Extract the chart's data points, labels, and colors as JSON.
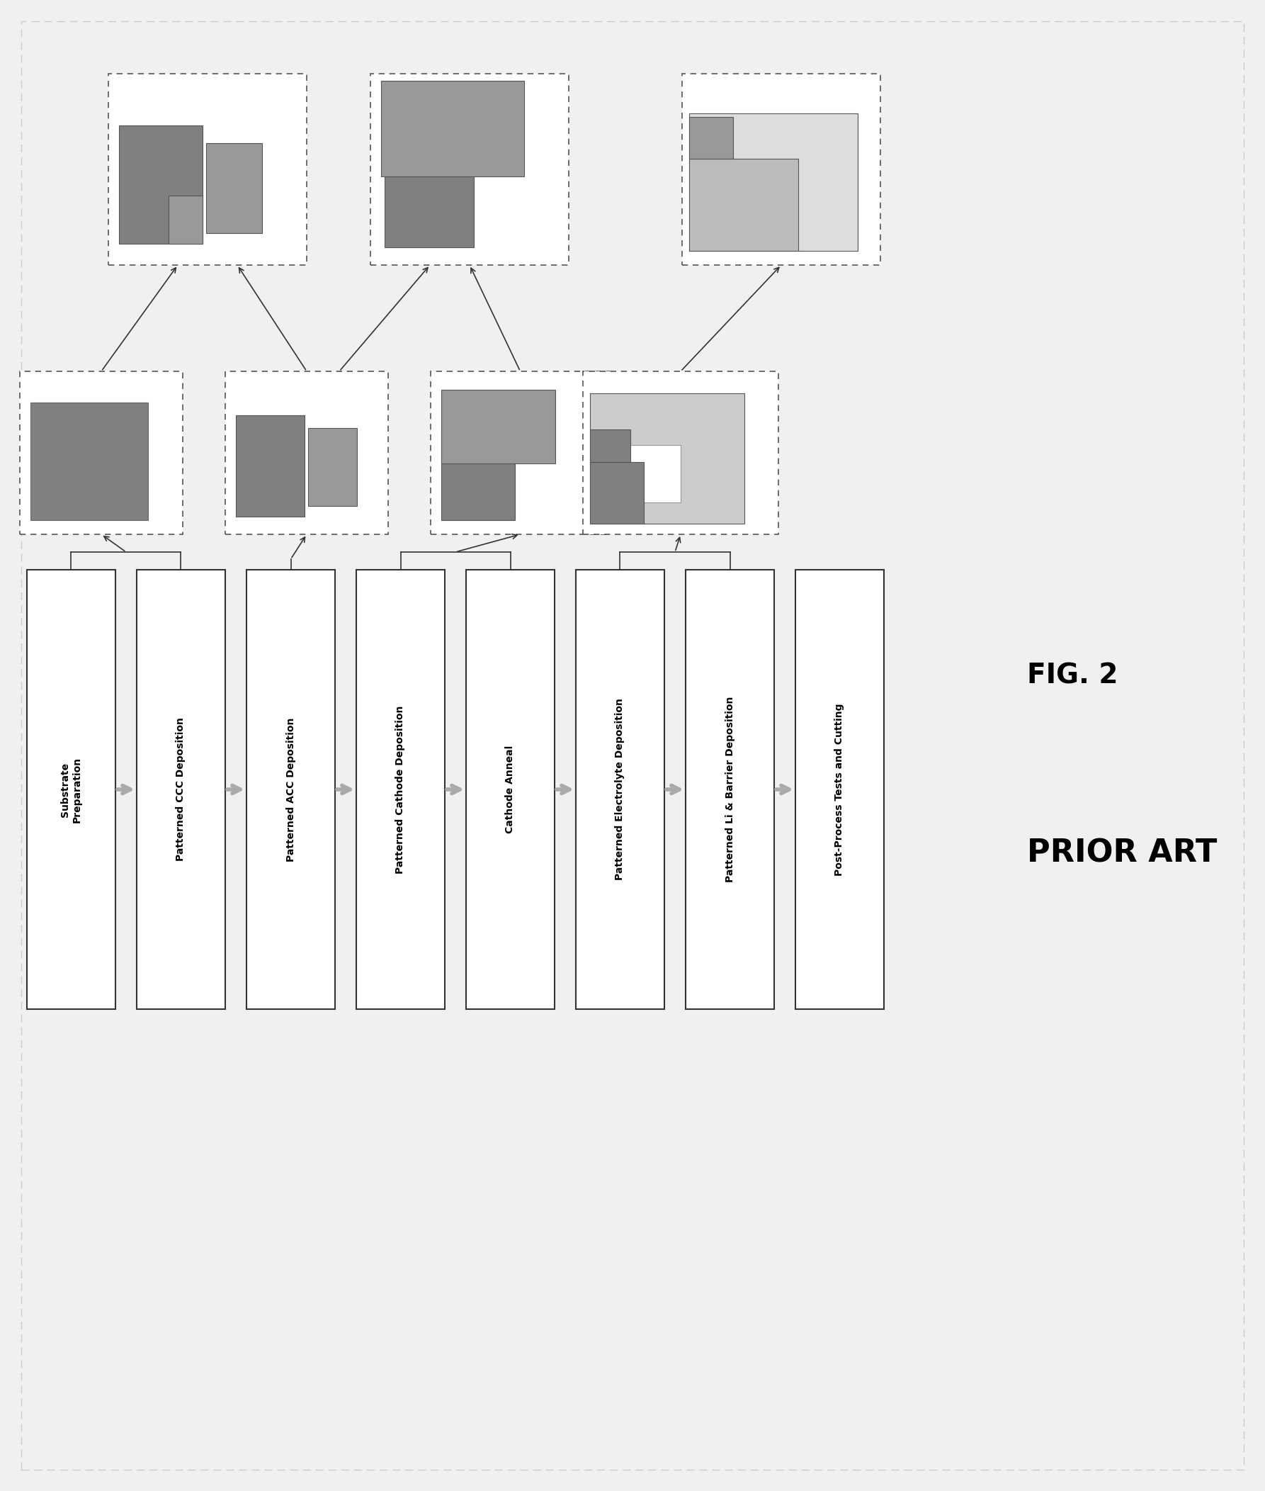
{
  "title": "FIG. 2",
  "subtitle": "PRIOR ART",
  "bg_color": "#f0f0f0",
  "step_labels": [
    "Substrate\nPreparation",
    "Patterned CCC Deposition",
    "Patterned ACC Deposition",
    "Patterned Cathode Deposition",
    "Cathode Anneal",
    "Patterned Electrolyte Deposition",
    "Patterned Li & Barrier Deposition",
    "Post-Process Tests and Cutting"
  ],
  "c_dark": "#808080",
  "c_med": "#999999",
  "c_light": "#bbbbbb",
  "c_lighter": "#cccccc",
  "c_lightest": "#dddddd",
  "c_white": "#ffffff",
  "c_box_edge": "#333333",
  "c_dash": "#555555",
  "c_arrow": "#999999"
}
